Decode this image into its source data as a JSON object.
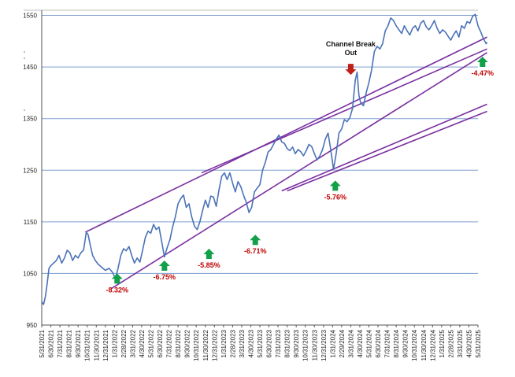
{
  "chart_data": {
    "type": "line",
    "title": "",
    "xlabel": "",
    "ylabel": "",
    "ylim": [
      950,
      1560
    ],
    "yticks": [
      950,
      1050,
      1150,
      1250,
      1350,
      1450,
      1550
    ],
    "grid": "horizontal",
    "x_tick_labels": [
      "5/31/2021",
      "6/30/2021",
      "7/31/2021",
      "8/31/2021",
      "9/30/2021",
      "10/31/2021",
      "11/30/2021",
      "12/31/2021",
      "1/31/2022",
      "2/28/2022",
      "3/31/2022",
      "4/30/2022",
      "5/31/2022",
      "6/30/2022",
      "7/31/2022",
      "8/31/2022",
      "9/30/2022",
      "10/31/2022",
      "11/30/2022",
      "12/31/2022",
      "1/31/2023",
      "2/28/2023",
      "3/31/2023",
      "4/30/2023",
      "5/31/2023",
      "6/30/2023",
      "7/31/2023",
      "8/31/2023",
      "9/30/2023",
      "10/31/2023",
      "11/30/2023",
      "12/31/2023",
      "1/31/2024",
      "2/29/2024",
      "3/31/2024",
      "4/30/2024",
      "5/31/2024",
      "6/30/2024",
      "7/31/2024",
      "8/31/2024",
      "9/30/2024",
      "10/31/2024",
      "11/30/2024",
      "12/31/2024",
      "1/31/2025",
      "2/28/2025",
      "3/31/2025",
      "4/30/2025",
      "5/31/2025"
    ],
    "series": [
      {
        "color": "#4a72b8",
        "points": [
          [
            0,
            995
          ],
          [
            0.2,
            990
          ],
          [
            0.4,
            1005
          ],
          [
            0.6,
            1030
          ],
          [
            0.8,
            1060
          ],
          [
            1.0,
            1065
          ],
          [
            1.3,
            1070
          ],
          [
            1.6,
            1075
          ],
          [
            1.9,
            1085
          ],
          [
            2.2,
            1070
          ],
          [
            2.5,
            1080
          ],
          [
            2.8,
            1095
          ],
          [
            3.1,
            1090
          ],
          [
            3.4,
            1075
          ],
          [
            3.7,
            1085
          ],
          [
            4.0,
            1080
          ],
          [
            4.3,
            1090
          ],
          [
            4.6,
            1095
          ],
          [
            4.9,
            1130
          ],
          [
            5.1,
            1125
          ],
          [
            5.3,
            1108
          ],
          [
            5.6,
            1085
          ],
          [
            5.9,
            1075
          ],
          [
            6.2,
            1068
          ],
          [
            6.6,
            1062
          ],
          [
            7.0,
            1056
          ],
          [
            7.4,
            1060
          ],
          [
            7.8,
            1052
          ],
          [
            8.1,
            1040
          ],
          [
            8.4,
            1060
          ],
          [
            8.7,
            1085
          ],
          [
            9.0,
            1098
          ],
          [
            9.3,
            1094
          ],
          [
            9.6,
            1102
          ],
          [
            9.9,
            1085
          ],
          [
            10.2,
            1070
          ],
          [
            10.5,
            1080
          ],
          [
            10.8,
            1072
          ],
          [
            11.1,
            1095
          ],
          [
            11.4,
            1120
          ],
          [
            11.7,
            1132
          ],
          [
            12.0,
            1128
          ],
          [
            12.3,
            1145
          ],
          [
            12.6,
            1135
          ],
          [
            12.9,
            1140
          ],
          [
            13.2,
            1112
          ],
          [
            13.5,
            1082
          ],
          [
            13.8,
            1100
          ],
          [
            14.1,
            1115
          ],
          [
            14.4,
            1140
          ],
          [
            14.7,
            1160
          ],
          [
            15.0,
            1185
          ],
          [
            15.3,
            1195
          ],
          [
            15.6,
            1202
          ],
          [
            15.9,
            1178
          ],
          [
            16.2,
            1185
          ],
          [
            16.5,
            1160
          ],
          [
            16.8,
            1142
          ],
          [
            17.1,
            1135
          ],
          [
            17.4,
            1150
          ],
          [
            17.7,
            1172
          ],
          [
            18.0,
            1192
          ],
          [
            18.3,
            1178
          ],
          [
            18.6,
            1200
          ],
          [
            18.9,
            1198
          ],
          [
            19.2,
            1180
          ],
          [
            19.5,
            1212
          ],
          [
            19.8,
            1238
          ],
          [
            20.1,
            1245
          ],
          [
            20.4,
            1232
          ],
          [
            20.7,
            1245
          ],
          [
            21.0,
            1225
          ],
          [
            21.3,
            1208
          ],
          [
            21.6,
            1228
          ],
          [
            21.9,
            1218
          ],
          [
            22.2,
            1202
          ],
          [
            22.5,
            1188
          ],
          [
            22.8,
            1168
          ],
          [
            23.1,
            1178
          ],
          [
            23.4,
            1208
          ],
          [
            23.7,
            1215
          ],
          [
            24.0,
            1222
          ],
          [
            24.3,
            1250
          ],
          [
            24.6,
            1265
          ],
          [
            24.9,
            1285
          ],
          [
            25.2,
            1290
          ],
          [
            25.5,
            1300
          ],
          [
            25.8,
            1310
          ],
          [
            26.1,
            1318
          ],
          [
            26.4,
            1305
          ],
          [
            26.7,
            1302
          ],
          [
            27.0,
            1292
          ],
          [
            27.3,
            1288
          ],
          [
            27.6,
            1295
          ],
          [
            27.9,
            1282
          ],
          [
            28.2,
            1290
          ],
          [
            28.5,
            1286
          ],
          [
            28.8,
            1278
          ],
          [
            29.1,
            1288
          ],
          [
            29.4,
            1300
          ],
          [
            29.7,
            1296
          ],
          [
            30.0,
            1282
          ],
          [
            30.3,
            1270
          ],
          [
            30.6,
            1278
          ],
          [
            30.9,
            1290
          ],
          [
            31.2,
            1310
          ],
          [
            31.5,
            1322
          ],
          [
            31.8,
            1290
          ],
          [
            32.1,
            1252
          ],
          [
            32.4,
            1282
          ],
          [
            32.7,
            1322
          ],
          [
            33.0,
            1330
          ],
          [
            33.3,
            1348
          ],
          [
            33.6,
            1344
          ],
          [
            33.9,
            1352
          ],
          [
            34.2,
            1370
          ],
          [
            34.5,
            1425
          ],
          [
            34.7,
            1440
          ],
          [
            34.9,
            1395
          ],
          [
            35.1,
            1380
          ],
          [
            35.4,
            1375
          ],
          [
            35.7,
            1400
          ],
          [
            36.0,
            1420
          ],
          [
            36.3,
            1445
          ],
          [
            36.6,
            1480
          ],
          [
            36.9,
            1490
          ],
          [
            37.2,
            1485
          ],
          [
            37.5,
            1495
          ],
          [
            37.8,
            1520
          ],
          [
            38.1,
            1530
          ],
          [
            38.4,
            1545
          ],
          [
            38.7,
            1540
          ],
          [
            39.0,
            1530
          ],
          [
            39.3,
            1522
          ],
          [
            39.6,
            1515
          ],
          [
            39.9,
            1530
          ],
          [
            40.2,
            1520
          ],
          [
            40.5,
            1512
          ],
          [
            40.8,
            1525
          ],
          [
            41.1,
            1530
          ],
          [
            41.4,
            1520
          ],
          [
            41.7,
            1535
          ],
          [
            42.0,
            1540
          ],
          [
            42.3,
            1528
          ],
          [
            42.6,
            1522
          ],
          [
            42.9,
            1530
          ],
          [
            43.2,
            1540
          ],
          [
            43.5,
            1525
          ],
          [
            43.8,
            1515
          ],
          [
            44.1,
            1522
          ],
          [
            44.4,
            1518
          ],
          [
            44.7,
            1510
          ],
          [
            45.0,
            1502
          ],
          [
            45.3,
            1512
          ],
          [
            45.6,
            1520
          ],
          [
            45.9,
            1508
          ],
          [
            46.2,
            1530
          ],
          [
            46.5,
            1525
          ],
          [
            46.8,
            1538
          ],
          [
            47.1,
            1535
          ],
          [
            47.4,
            1548
          ],
          [
            47.7,
            1552
          ],
          [
            48.0,
            1530
          ],
          [
            48.3,
            1518
          ],
          [
            48.6,
            1505
          ],
          [
            48.9,
            1495
          ],
          [
            49.0,
            1498
          ]
        ]
      }
    ],
    "channel_lines": [
      {
        "color": "#7a30a0",
        "from": [
          4.8,
          1130
        ],
        "to": [
          49.0,
          1508
        ]
      },
      {
        "color": "#7a30a0",
        "from": [
          7.6,
          1020
        ],
        "to": [
          49.0,
          1478
        ]
      },
      {
        "color": "#7a30a0",
        "from": [
          17.6,
          1245
        ],
        "to": [
          49.0,
          1485
        ]
      },
      {
        "color": "#7a30a0",
        "from": [
          26.4,
          1210
        ],
        "to": [
          49.0,
          1378
        ]
      },
      {
        "color": "#7a30a0",
        "from": [
          27.0,
          1210
        ],
        "to": [
          49.0,
          1364
        ]
      }
    ],
    "pullbacks": [
      {
        "label": "-8.32%",
        "x": 8.3,
        "y": 1050
      },
      {
        "label": "-6.75%",
        "x": 13.5,
        "y": 1075
      },
      {
        "label": "-5.85%",
        "x": 18.4,
        "y": 1098
      },
      {
        "label": "-6.71%",
        "x": 23.5,
        "y": 1125
      },
      {
        "label": "-5.76%",
        "x": 32.3,
        "y": 1230
      },
      {
        "label": "-4.47%",
        "x": 48.5,
        "y": 1470
      }
    ],
    "annotation": {
      "line1": "Channel Break",
      "line2": "Out",
      "x": 34.0,
      "y": 1450
    },
    "colors": {
      "line": "#4a72b8",
      "channel": "#7a30a0",
      "gridline": "#7d9fd0",
      "up_arrow": "#12a04a",
      "down_arrow": "#c0201a",
      "pct_text": "#c00000"
    }
  }
}
